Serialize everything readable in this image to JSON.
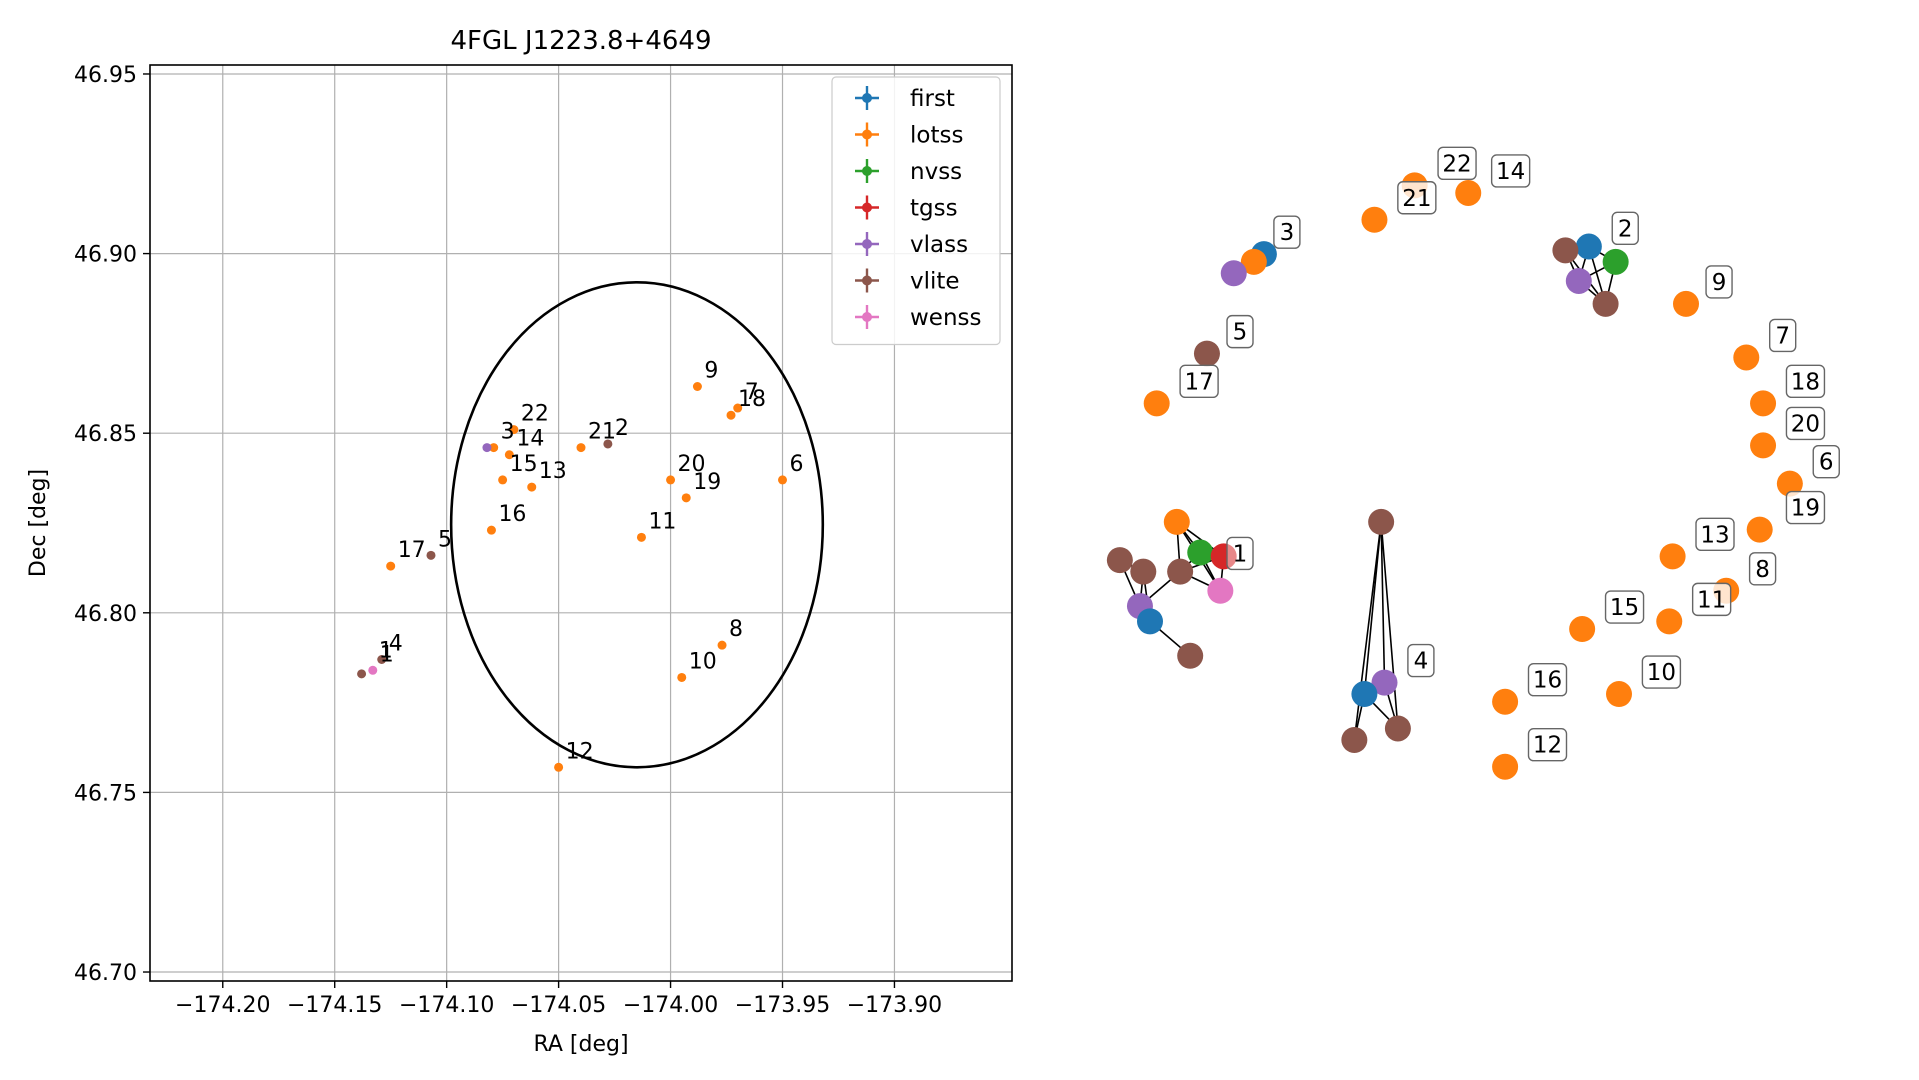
{
  "chart_data": [
    {
      "type": "scatter",
      "title": "4FGL J1223.8+4649",
      "xlabel": "RA [deg]",
      "ylabel": "Dec [deg]",
      "xlim": [
        -174.2325,
        -173.8475
      ],
      "ylim": [
        46.6975,
        46.9525
      ],
      "x_ticks": [
        -174.2,
        -174.15,
        -174.1,
        -174.05,
        -174.0,
        -173.95,
        -173.9
      ],
      "x_tick_labels": [
        "−174.20",
        "−174.15",
        "−174.10",
        "−174.05",
        "−174.00",
        "−173.95",
        "−173.90"
      ],
      "y_ticks": [
        46.7,
        46.75,
        46.8,
        46.85,
        46.9,
        46.95
      ],
      "y_tick_labels": [
        "46.70",
        "46.75",
        "46.80",
        "46.85",
        "46.90",
        "46.95"
      ],
      "grid": true,
      "legend_position": "top-right",
      "ellipse": {
        "center": [
          -174.015,
          46.8245
        ],
        "semi_axis_ra": 0.083,
        "semi_axis_dec": 0.0675,
        "color": "#000000"
      },
      "series": [
        {
          "name": "first",
          "color": "#1f77b4",
          "points": []
        },
        {
          "name": "lotss",
          "color": "#ff7f0e",
          "points": [
            {
              "label": "3",
              "x": -174.079,
              "y": 46.846
            },
            {
              "label": "22",
              "x": -174.07,
              "y": 46.851
            },
            {
              "label": "14",
              "x": -174.072,
              "y": 46.844
            },
            {
              "label": "15",
              "x": -174.075,
              "y": 46.837
            },
            {
              "label": "13",
              "x": -174.062,
              "y": 46.835
            },
            {
              "label": "16",
              "x": -174.08,
              "y": 46.823
            },
            {
              "label": "17",
              "x": -174.125,
              "y": 46.813
            },
            {
              "label": "21",
              "x": -174.04,
              "y": 46.846
            },
            {
              "label": "9",
              "x": -173.988,
              "y": 46.863
            },
            {
              "label": "7",
              "x": -173.97,
              "y": 46.857
            },
            {
              "label": "18",
              "x": -173.973,
              "y": 46.855
            },
            {
              "label": "20",
              "x": -174.0,
              "y": 46.837
            },
            {
              "label": "19",
              "x": -173.993,
              "y": 46.832
            },
            {
              "label": "6",
              "x": -173.95,
              "y": 46.837
            },
            {
              "label": "11",
              "x": -174.013,
              "y": 46.821
            },
            {
              "label": "8",
              "x": -173.977,
              "y": 46.791
            },
            {
              "label": "10",
              "x": -173.995,
              "y": 46.782
            },
            {
              "label": "12",
              "x": -174.05,
              "y": 46.757
            }
          ]
        },
        {
          "name": "nvss",
          "color": "#2ca02c",
          "points": []
        },
        {
          "name": "tgss",
          "color": "#d62728",
          "points": []
        },
        {
          "name": "vlass",
          "color": "#9467bd",
          "points": [
            {
              "label": "",
              "x": -174.082,
              "y": 46.846
            }
          ]
        },
        {
          "name": "vlite",
          "color": "#8c564b",
          "points": [
            {
              "label": "2",
              "x": -174.028,
              "y": 46.847
            },
            {
              "label": "5",
              "x": -174.107,
              "y": 46.816
            },
            {
              "label": "4",
              "x": -174.129,
              "y": 46.787
            },
            {
              "label": "",
              "x": -174.138,
              "y": 46.783
            }
          ]
        },
        {
          "name": "wenss",
          "color": "#e377c2",
          "points": [
            {
              "label": "1",
              "x": -174.133,
              "y": 46.784
            }
          ]
        }
      ],
      "extra_point_labels": [
        {
          "label": "1",
          "x": -174.133,
          "y": 46.785
        }
      ]
    },
    {
      "type": "network",
      "colors": {
        "first": "#1f77b4",
        "lotss": "#ff7f0e",
        "nvss": "#2ca02c",
        "tgss": "#d62728",
        "vlass": "#9467bd",
        "vlite": "#8c564b",
        "wenss": "#e377c2"
      },
      "node_labels": [
        {
          "text": "3",
          "x": 0.17,
          "y": 0.805,
          "faded": true
        },
        {
          "text": "22",
          "x": 0.415,
          "y": 0.895
        },
        {
          "text": "14",
          "x": 0.495,
          "y": 0.885
        },
        {
          "text": "21",
          "x": 0.355,
          "y": 0.85
        },
        {
          "text": "2",
          "x": 0.675,
          "y": 0.81
        },
        {
          "text": "9",
          "x": 0.815,
          "y": 0.74
        },
        {
          "text": "5",
          "x": 0.1,
          "y": 0.675
        },
        {
          "text": "7",
          "x": 0.91,
          "y": 0.67
        },
        {
          "text": "17",
          "x": 0.03,
          "y": 0.61
        },
        {
          "text": "18",
          "x": 0.935,
          "y": 0.61
        },
        {
          "text": "20",
          "x": 0.935,
          "y": 0.555
        },
        {
          "text": "6",
          "x": 0.975,
          "y": 0.505
        },
        {
          "text": "19",
          "x": 0.935,
          "y": 0.445
        },
        {
          "text": "13",
          "x": 0.8,
          "y": 0.41
        },
        {
          "text": "1",
          "x": 0.1,
          "y": 0.385,
          "faded": true
        },
        {
          "text": "8",
          "x": 0.88,
          "y": 0.365
        },
        {
          "text": "15",
          "x": 0.665,
          "y": 0.315
        },
        {
          "text": "11",
          "x": 0.795,
          "y": 0.325
        },
        {
          "text": "4",
          "x": 0.37,
          "y": 0.245
        },
        {
          "text": "16",
          "x": 0.55,
          "y": 0.22
        },
        {
          "text": "10",
          "x": 0.72,
          "y": 0.23
        },
        {
          "text": "12",
          "x": 0.55,
          "y": 0.135
        }
      ],
      "nodes": [
        {
          "label": "3",
          "survey": "first",
          "x": 0.17,
          "y": 0.805
        },
        {
          "label": "3",
          "survey": "lotss",
          "x": 0.155,
          "y": 0.795
        },
        {
          "label": "3",
          "survey": "vlass",
          "x": 0.125,
          "y": 0.78
        },
        {
          "label": "22",
          "survey": "lotss",
          "x": 0.395,
          "y": 0.895
        },
        {
          "label": "14",
          "survey": "lotss",
          "x": 0.475,
          "y": 0.885
        },
        {
          "label": "21",
          "survey": "lotss",
          "x": 0.335,
          "y": 0.85
        },
        {
          "label": "2",
          "survey": "first",
          "x": 0.655,
          "y": 0.815
        },
        {
          "label": "2",
          "survey": "vlite",
          "x": 0.62,
          "y": 0.81
        },
        {
          "label": "2",
          "survey": "nvss",
          "x": 0.695,
          "y": 0.795
        },
        {
          "label": "2",
          "survey": "vlass",
          "x": 0.64,
          "y": 0.77
        },
        {
          "label": "2",
          "survey": "vlite",
          "x": 0.68,
          "y": 0.74
        },
        {
          "label": "9",
          "survey": "lotss",
          "x": 0.8,
          "y": 0.74
        },
        {
          "label": "5",
          "survey": "vlite",
          "x": 0.085,
          "y": 0.675
        },
        {
          "label": "7",
          "survey": "lotss",
          "x": 0.89,
          "y": 0.67
        },
        {
          "label": "17",
          "survey": "lotss",
          "x": 0.01,
          "y": 0.61
        },
        {
          "label": "18",
          "survey": "lotss",
          "x": 0.915,
          "y": 0.61
        },
        {
          "label": "20",
          "survey": "lotss",
          "x": 0.915,
          "y": 0.555
        },
        {
          "label": "6",
          "survey": "lotss",
          "x": 0.955,
          "y": 0.505
        },
        {
          "label": "19",
          "survey": "lotss",
          "x": 0.91,
          "y": 0.445
        },
        {
          "label": "13",
          "survey": "lotss",
          "x": 0.78,
          "y": 0.41
        },
        {
          "label": "1",
          "survey": "lotss",
          "x": 0.04,
          "y": 0.455
        },
        {
          "label": "1",
          "survey": "vlite",
          "x": -0.045,
          "y": 0.405
        },
        {
          "label": "1",
          "survey": "vlite",
          "x": -0.01,
          "y": 0.39
        },
        {
          "label": "1",
          "survey": "nvss",
          "x": 0.075,
          "y": 0.415
        },
        {
          "label": "1",
          "survey": "tgss",
          "x": 0.11,
          "y": 0.41
        },
        {
          "label": "1",
          "survey": "vlite",
          "x": 0.045,
          "y": 0.39
        },
        {
          "label": "1",
          "survey": "wenss",
          "x": 0.105,
          "y": 0.365
        },
        {
          "label": "1",
          "survey": "vlass",
          "x": -0.015,
          "y": 0.345
        },
        {
          "label": "1",
          "survey": "first",
          "x": 0.0,
          "y": 0.325
        },
        {
          "label": "1",
          "survey": "vlite",
          "x": 0.06,
          "y": 0.28
        },
        {
          "label": "8",
          "survey": "lotss",
          "x": 0.86,
          "y": 0.365
        },
        {
          "label": "15",
          "survey": "lotss",
          "x": 0.645,
          "y": 0.315
        },
        {
          "label": "11",
          "survey": "lotss",
          "x": 0.775,
          "y": 0.325
        },
        {
          "label": "4",
          "survey": "vlite",
          "x": 0.345,
          "y": 0.455
        },
        {
          "label": "4",
          "survey": "vlass",
          "x": 0.35,
          "y": 0.245
        },
        {
          "label": "4",
          "survey": "first",
          "x": 0.32,
          "y": 0.23
        },
        {
          "label": "4",
          "survey": "vlite",
          "x": 0.305,
          "y": 0.17
        },
        {
          "label": "4",
          "survey": "vlite",
          "x": 0.37,
          "y": 0.185
        },
        {
          "label": "16",
          "survey": "lotss",
          "x": 0.53,
          "y": 0.22
        },
        {
          "label": "10",
          "survey": "lotss",
          "x": 0.7,
          "y": 0.23
        },
        {
          "label": "12",
          "survey": "lotss",
          "x": 0.53,
          "y": 0.135
        }
      ],
      "edges": [
        [
          0,
          1
        ],
        [
          1,
          2
        ],
        [
          6,
          7
        ],
        [
          6,
          8
        ],
        [
          6,
          9
        ],
        [
          6,
          10
        ],
        [
          7,
          9
        ],
        [
          7,
          10
        ],
        [
          8,
          9
        ],
        [
          8,
          10
        ],
        [
          9,
          10
        ],
        [
          20,
          23
        ],
        [
          20,
          24
        ],
        [
          20,
          25
        ],
        [
          20,
          26
        ],
        [
          23,
          24
        ],
        [
          23,
          26
        ],
        [
          24,
          25
        ],
        [
          24,
          26
        ],
        [
          25,
          26
        ],
        [
          23,
          25
        ],
        [
          21,
          27
        ],
        [
          22,
          27
        ],
        [
          27,
          28
        ],
        [
          28,
          29
        ],
        [
          22,
          28
        ],
        [
          21,
          22
        ],
        [
          25,
          27
        ],
        [
          33,
          34
        ],
        [
          33,
          35
        ],
        [
          33,
          36
        ],
        [
          34,
          35
        ],
        [
          34,
          37
        ],
        [
          35,
          36
        ],
        [
          35,
          37
        ],
        [
          33,
          37
        ]
      ]
    }
  ]
}
